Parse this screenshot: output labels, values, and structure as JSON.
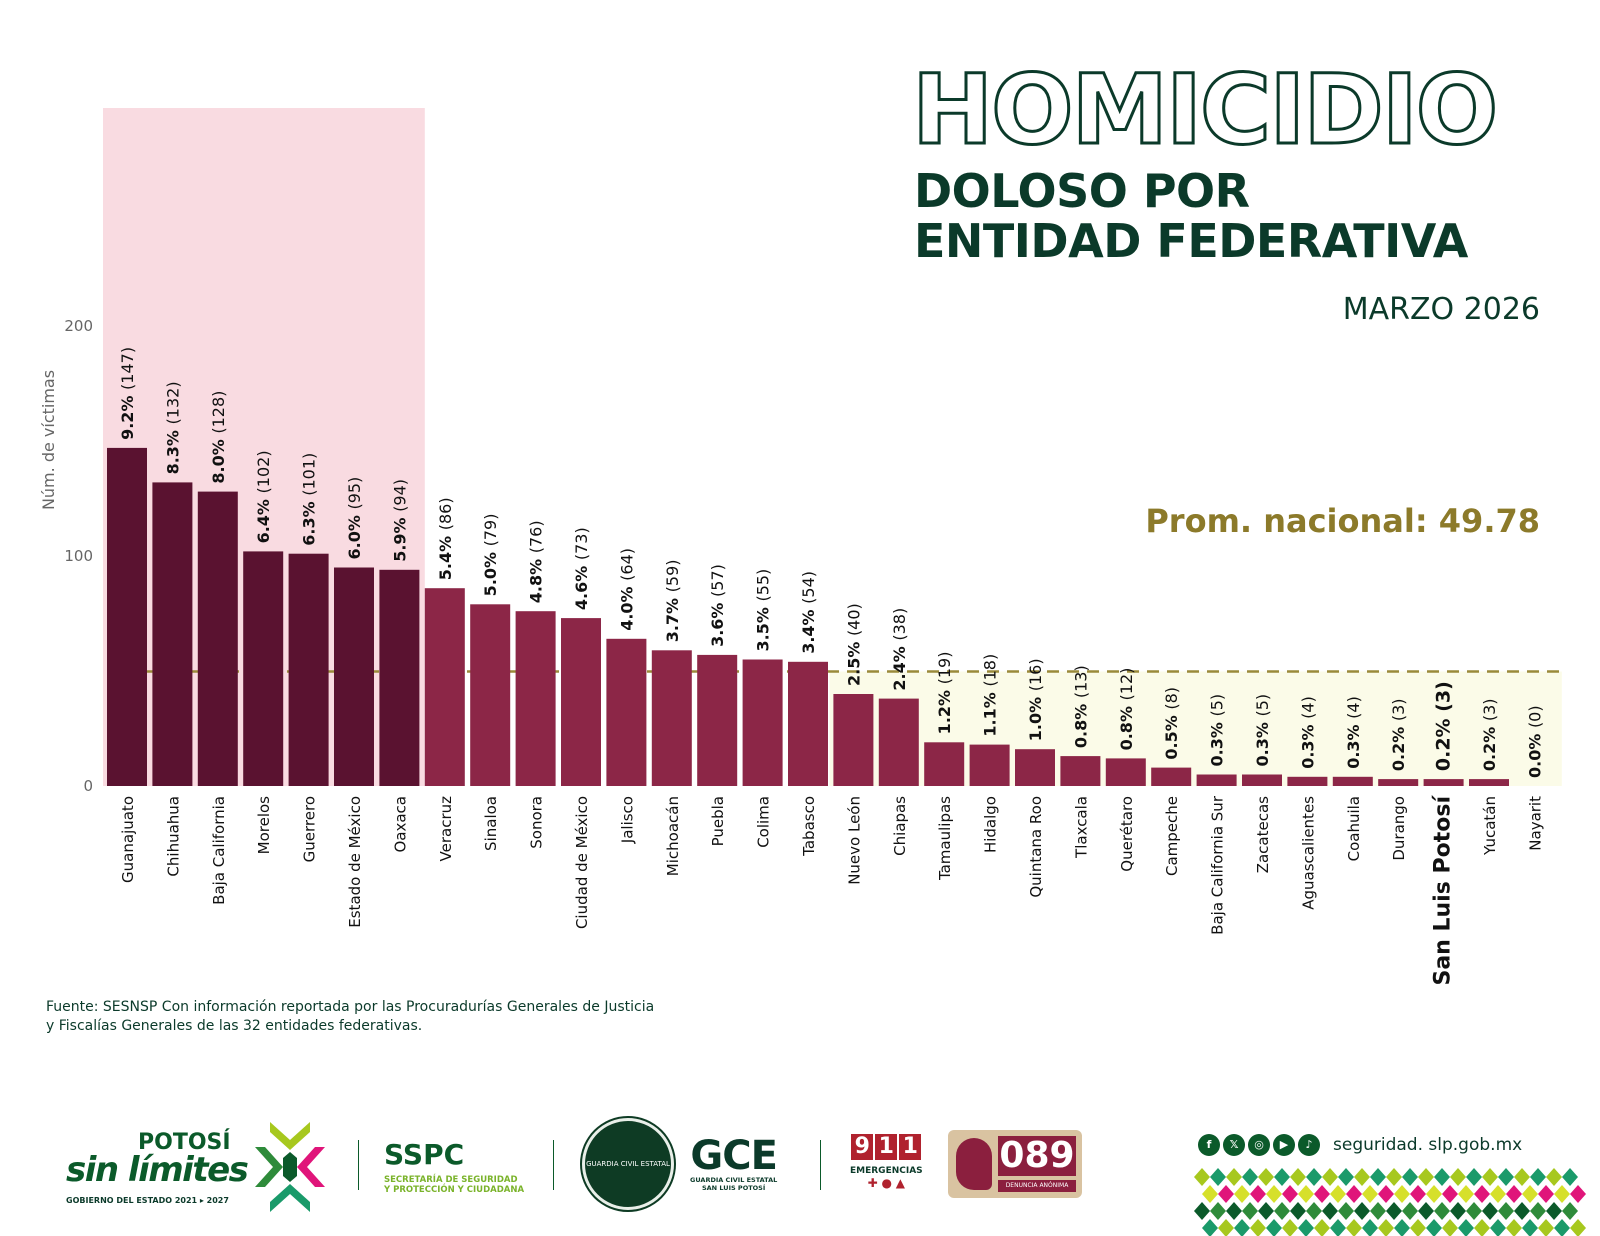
{
  "header": {
    "title_line1": "HOMICIDIO",
    "title_line2": "DOLOSO POR",
    "title_line3": "ENTIDAD FEDERATIVA",
    "date": "MARZO 2026"
  },
  "chart_data": {
    "type": "bar",
    "ylabel": "Núm. de víctimas",
    "ylim": [
      0,
      200
    ],
    "yticks": [
      "0",
      "100",
      "200"
    ],
    "categories": [
      "Guanajuato",
      "Chihuahua",
      "Baja California",
      "Morelos",
      "Guerrero",
      "Estado de México",
      "Oaxaca",
      "Veracruz",
      "Sinaloa",
      "Sonora",
      "Ciudad de México",
      "Jalisco",
      "Michoacán",
      "Puebla",
      "Colima",
      "Tabasco",
      "Nuevo León",
      "Chiapas",
      "Tamaulipas",
      "Hidalgo",
      "Quintana Roo",
      "Tlaxcala",
      "Querétaro",
      "Campeche",
      "Baja California Sur",
      "Zacatecas",
      "Aguascalientes",
      "Coahuila",
      "Durango",
      "San Luis Potosí",
      "Yucatán",
      "Nayarit"
    ],
    "values": [
      147,
      132,
      128,
      102,
      101,
      95,
      94,
      86,
      79,
      76,
      73,
      64,
      59,
      57,
      55,
      54,
      40,
      38,
      19,
      18,
      16,
      13,
      12,
      8,
      5,
      5,
      4,
      4,
      3,
      3,
      3,
      0
    ],
    "percent_labels": [
      "9.2%",
      "8.3%",
      "8.0%",
      "6.4%",
      "6.3%",
      "6.0%",
      "5.9%",
      "5.4%",
      "5.0%",
      "4.8%",
      "4.6%",
      "4.0%",
      "3.7%",
      "3.6%",
      "3.5%",
      "3.4%",
      "2.5%",
      "2.4%",
      "1.2%",
      "1.1%",
      "1.0%",
      "0.8%",
      "0.8%",
      "0.5%",
      "0.3%",
      "0.3%",
      "0.3%",
      "0.3%",
      "0.2%",
      "0.2%",
      "0.2%",
      "0.0%"
    ],
    "count_labels": [
      "(147)",
      "(132)",
      "(128)",
      "(102)",
      "(101)",
      "(95)",
      "(94)",
      "(86)",
      "(79)",
      "(76)",
      "(73)",
      "(64)",
      "(59)",
      "(57)",
      "(55)",
      "(54)",
      "(40)",
      "(38)",
      "(19)",
      "(18)",
      "(16)",
      "(13)",
      "(12)",
      "(8)",
      "(5)",
      "(5)",
      "(4)",
      "(4)",
      "(3)",
      "(3)",
      "(3)",
      "(0)"
    ],
    "highlight_category": "San Luis Potosí",
    "top_group_count": 7,
    "average": 49.78,
    "average_label": "Prom. nacional: 49.78",
    "colors": {
      "top_group": "#5a1230",
      "others": "#8c2647",
      "top_group_background": "#f9dbe1",
      "below_average_background": "#fbfbe8",
      "average_line": "#9a8a3a",
      "average_label": "#8c7a2a"
    },
    "grid": false
  },
  "source": {
    "line1": "Fuente: SESNSP Con información reportada por las  Procuradurías Generales de Justicia",
    "line2": "y  Fiscalías Generales de las 32 entidades federativas."
  },
  "footer": {
    "potosi_line1": "POTOSÍ",
    "potosi_line2": "sin límites",
    "potosi_line3": "GOBIERNO DEL ESTADO 2021 ▸ 2027",
    "sspc": "SSPC",
    "sspc_sub1": "SECRETARÍA DE SEGURIDAD",
    "sspc_sub2": "Y PROTECCIÓN Y CIUDADANA",
    "seal_text": "GUARDIA CIVIL ESTATAL",
    "gce": "GCE",
    "gce_sub1": "GUARDIA CIVIL ESTATAL",
    "gce_sub2": "SAN LUIS POTOSÍ",
    "emergency_digits": [
      "9",
      "1",
      "1"
    ],
    "emergency_label": "EMERGENCIAS",
    "emergency_icons": "✚ ● ▲",
    "denuncia_number": "089",
    "denuncia_label": "DENUNCIA ANÓNIMA",
    "social_icons": [
      "facebook-icon",
      "x-icon",
      "instagram-icon",
      "youtube-icon",
      "tiktok-icon"
    ],
    "social_glyphs": [
      "f",
      "𝕏",
      "◎",
      "▶",
      "♪"
    ],
    "website": "seguridad. slp.gob.mx"
  }
}
